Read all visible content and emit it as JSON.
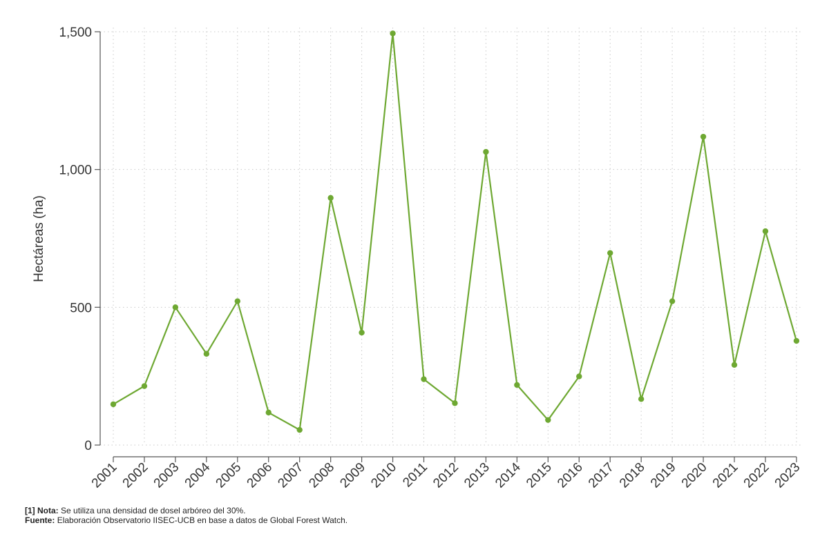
{
  "chart_data": {
    "type": "line",
    "title": "",
    "xlabel": "",
    "ylabel": "Hectáreas (ha)",
    "x": [
      "2001",
      "2002",
      "2003",
      "2004",
      "2005",
      "2006",
      "2007",
      "2008",
      "2009",
      "2010",
      "2011",
      "2012",
      "2013",
      "2014",
      "2015",
      "2016",
      "2017",
      "2018",
      "2019",
      "2020",
      "2021",
      "2022",
      "2023"
    ],
    "series": [
      {
        "values": [
          148,
          214,
          500,
          331,
          522,
          118,
          55,
          897,
          408,
          1494,
          239,
          152,
          1064,
          218,
          91,
          249,
          697,
          167,
          522,
          1119,
          291,
          776,
          378
        ]
      }
    ],
    "ylim": [
      0,
      1500
    ],
    "yticks": [
      0,
      500,
      1000,
      1500
    ],
    "ytick_labels": [
      "0",
      "500",
      "1,000",
      "1,500"
    ],
    "grid": true,
    "legend": "none",
    "colors": {
      "line": "#6ea832",
      "axis": "#555555",
      "grid": "#c8c8c8"
    }
  },
  "notes": {
    "note_label": "[1] Nota:",
    "note_text": "Se utiliza una densidad de dosel arbóreo del 30%.",
    "source_label": "Fuente:",
    "source_text": "Elaboración Observatorio IISEC-UCB en base a datos de Global Forest Watch."
  }
}
